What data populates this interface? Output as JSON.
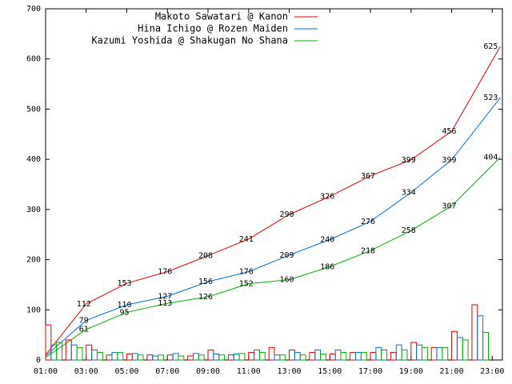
{
  "chart_data": [
    {
      "type": "line",
      "x": [
        1,
        3,
        5,
        7,
        9,
        11,
        13,
        15,
        17,
        19,
        21,
        23.4
      ],
      "xlim": [
        1,
        23.5
      ],
      "xticks": [
        {
          "value": 1,
          "label": "01:00"
        },
        {
          "value": 3,
          "label": "03:00"
        },
        {
          "value": 5,
          "label": "05:00"
        },
        {
          "value": 7,
          "label": "07:00"
        },
        {
          "value": 9,
          "label": "09:00"
        },
        {
          "value": 11,
          "label": "11:00"
        },
        {
          "value": 13,
          "label": "13:00"
        },
        {
          "value": 15,
          "label": "15:00"
        },
        {
          "value": 17,
          "label": "17:00"
        },
        {
          "value": 19,
          "label": "19:00"
        },
        {
          "value": 21,
          "label": "21:00"
        },
        {
          "value": 23,
          "label": "23:00"
        }
      ],
      "ylim": [
        0,
        700
      ],
      "yticks": [
        0,
        100,
        200,
        300,
        400,
        500,
        600,
        700
      ],
      "legend": "top-right",
      "series": [
        {
          "name": "Makoto Sawatari @ Kanon",
          "color": "#e00000",
          "values": [
            10,
            112,
            153,
            176,
            208,
            241,
            290,
            326,
            367,
            399,
            456,
            625
          ]
        },
        {
          "name": "Hina Ichigo @ Rozen Maiden",
          "color": "#0070d0",
          "values": [
            8,
            79,
            110,
            127,
            156,
            176,
            209,
            240,
            276,
            334,
            399,
            523
          ]
        },
        {
          "name": "Kazumi Yoshida @ Shakugan No Shana",
          "color": "#00b000",
          "values": [
            5,
            61,
            95,
            113,
            126,
            152,
            160,
            186,
            218,
            258,
            307,
            404
          ]
        }
      ]
    },
    {
      "type": "bar",
      "x": [
        1,
        2,
        3,
        4,
        5,
        6,
        7,
        8,
        9,
        10,
        11,
        12,
        13,
        14,
        15,
        16,
        17,
        18,
        19,
        20,
        21,
        22
      ],
      "xlim": [
        1,
        23.5
      ],
      "ylim": [
        0,
        700
      ],
      "series": [
        {
          "color": "#e00000",
          "values": [
            70,
            40,
            30,
            10,
            12,
            10,
            10,
            8,
            20,
            10,
            15,
            25,
            20,
            15,
            12,
            15,
            15,
            15,
            35,
            25,
            57,
            110
          ]
        },
        {
          "color": "#0070d0",
          "values": [
            30,
            30,
            20,
            15,
            13,
            8,
            13,
            13,
            12,
            12,
            20,
            10,
            15,
            20,
            20,
            15,
            25,
            30,
            30,
            25,
            45,
            88
          ]
        },
        {
          "color": "#00b000",
          "values": [
            35,
            25,
            15,
            15,
            10,
            10,
            8,
            10,
            10,
            13,
            15,
            10,
            10,
            12,
            15,
            15,
            20,
            20,
            25,
            25,
            40,
            55
          ]
        }
      ]
    }
  ]
}
